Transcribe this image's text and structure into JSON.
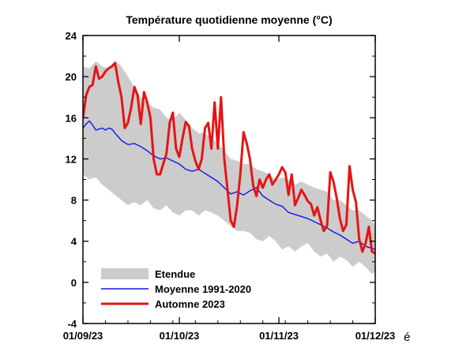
{
  "chart_data": {
    "type": "line",
    "title": "Température quotidienne moyenne (°C)",
    "x_ticks": [
      "01/09/23",
      "01/10/23",
      "01/11/23",
      "01/12/23"
    ],
    "x_tick_positions": [
      0,
      30,
      61,
      91
    ],
    "x_trailing_char": "é",
    "xlim": [
      0,
      91
    ],
    "ylim": [
      -4,
      24
    ],
    "y_ticks": [
      -4,
      0,
      4,
      8,
      12,
      16,
      20,
      24
    ],
    "grid": false,
    "legend_position": "bottom-left",
    "series": [
      {
        "name": "Etendue",
        "kind": "band",
        "color": "#cccccc",
        "x": [
          0,
          2,
          4,
          6,
          8,
          10,
          12,
          14,
          16,
          18,
          20,
          22,
          24,
          26,
          28,
          30,
          32,
          34,
          36,
          38,
          40,
          42,
          44,
          46,
          48,
          50,
          52,
          54,
          56,
          58,
          60,
          62,
          64,
          66,
          68,
          70,
          72,
          74,
          76,
          78,
          80,
          82,
          84,
          86,
          88,
          90,
          91
        ],
        "upper": [
          21.0,
          20.8,
          21.5,
          21.0,
          20.8,
          21.6,
          21.0,
          20.0,
          19.0,
          18.0,
          17.5,
          17.0,
          16.8,
          16.0,
          15.8,
          16.5,
          15.8,
          15.0,
          14.5,
          14.5,
          14.0,
          13.5,
          12.8,
          12.0,
          11.8,
          11.5,
          11.5,
          11.0,
          10.8,
          10.5,
          10.0,
          10.2,
          10.0,
          9.5,
          9.8,
          9.5,
          9.2,
          9.0,
          8.8,
          8.0,
          8.0,
          7.5,
          7.0,
          7.0,
          6.5,
          6.0,
          5.5
        ],
        "lower": [
          10.5,
          10.0,
          10.2,
          9.5,
          9.0,
          8.5,
          8.0,
          7.5,
          7.8,
          7.5,
          8.0,
          7.2,
          7.0,
          7.5,
          6.8,
          6.5,
          7.0,
          7.0,
          6.5,
          7.0,
          6.8,
          6.5,
          6.0,
          5.5,
          5.0,
          5.0,
          4.8,
          4.2,
          4.0,
          4.5,
          4.0,
          3.2,
          3.5,
          3.0,
          3.5,
          3.8,
          3.0,
          2.5,
          2.8,
          2.0,
          2.5,
          2.2,
          1.5,
          2.0,
          1.5,
          0.8,
          1.0
        ]
      },
      {
        "name": "Moyenne 1991-2020",
        "kind": "line",
        "color": "#1414e6",
        "x": [
          0,
          1,
          2,
          3,
          4,
          5,
          6,
          7,
          8,
          9,
          10,
          12,
          14,
          16,
          18,
          20,
          22,
          24,
          26,
          28,
          30,
          32,
          34,
          36,
          38,
          40,
          42,
          44,
          46,
          48,
          50,
          52,
          54,
          56,
          58,
          60,
          62,
          64,
          66,
          68,
          70,
          72,
          74,
          76,
          78,
          80,
          82,
          84,
          86,
          88,
          90,
          91
        ],
        "y": [
          15.0,
          15.4,
          15.7,
          15.3,
          14.8,
          14.9,
          15.0,
          14.8,
          15.0,
          14.9,
          14.5,
          13.8,
          13.4,
          13.5,
          13.2,
          12.8,
          12.3,
          12.0,
          12.1,
          11.8,
          11.5,
          11.0,
          10.8,
          11.0,
          10.6,
          10.2,
          9.8,
          9.2,
          8.6,
          8.8,
          8.5,
          8.9,
          9.2,
          8.4,
          8.0,
          7.6,
          7.4,
          6.8,
          6.6,
          6.4,
          6.2,
          5.9,
          5.6,
          5.3,
          4.9,
          4.6,
          4.2,
          3.8,
          4.0,
          3.5,
          3.3,
          3.2
        ]
      },
      {
        "name": "Automne 2023",
        "kind": "line",
        "color": "#e61414",
        "x": [
          0,
          1,
          2,
          3,
          4,
          5,
          6,
          7,
          8,
          9,
          10,
          11,
          12,
          13,
          14,
          15,
          16,
          17,
          18,
          19,
          20,
          21,
          22,
          23,
          24,
          25,
          26,
          27,
          28,
          29,
          30,
          31,
          32,
          33,
          34,
          35,
          36,
          37,
          38,
          39,
          40,
          41,
          42,
          43,
          44,
          45,
          46,
          47,
          48,
          49,
          50,
          51,
          52,
          53,
          54,
          55,
          56,
          57,
          58,
          59,
          60,
          61,
          62,
          63,
          64,
          65,
          66,
          67,
          68,
          69,
          70,
          71,
          72,
          73,
          74,
          75,
          76,
          77,
          78,
          79,
          80,
          81,
          82,
          83,
          84,
          85,
          86,
          87,
          88,
          89,
          90,
          91
        ],
        "y": [
          16.0,
          18.2,
          19.0,
          19.2,
          21.0,
          19.8,
          20.0,
          20.5,
          20.8,
          21.0,
          21.3,
          19.5,
          18.0,
          15.0,
          15.5,
          17.0,
          19.0,
          18.2,
          15.4,
          18.5,
          17.5,
          16.0,
          12.0,
          10.5,
          10.5,
          11.5,
          12.5,
          15.5,
          16.5,
          13.0,
          12.2,
          14.0,
          15.6,
          15.2,
          13.0,
          11.8,
          11.0,
          12.0,
          15.0,
          15.5,
          13.0,
          17.5,
          13.0,
          18.0,
          12.0,
          9.0,
          6.0,
          5.4,
          7.5,
          10.5,
          14.6,
          13.5,
          12.0,
          9.4,
          8.4,
          10.0,
          9.2,
          10.0,
          10.5,
          9.5,
          10.0,
          10.5,
          11.2,
          10.7,
          8.5,
          10.5,
          7.5,
          8.2,
          9.0,
          8.5,
          7.9,
          7.6,
          6.5,
          7.3,
          6.0,
          5.0,
          5.5,
          10.7,
          9.8,
          8.2,
          6.2,
          5.0,
          5.6,
          11.3,
          9.0,
          7.8,
          4.2,
          3.0,
          3.8,
          5.4,
          3.0,
          2.8
        ]
      }
    ],
    "legend": [
      {
        "label": "Etendue",
        "kind": "band"
      },
      {
        "label": "Moyenne 1991-2020",
        "kind": "line-thin"
      },
      {
        "label": "Automne 2023",
        "kind": "line-thick"
      }
    ]
  }
}
